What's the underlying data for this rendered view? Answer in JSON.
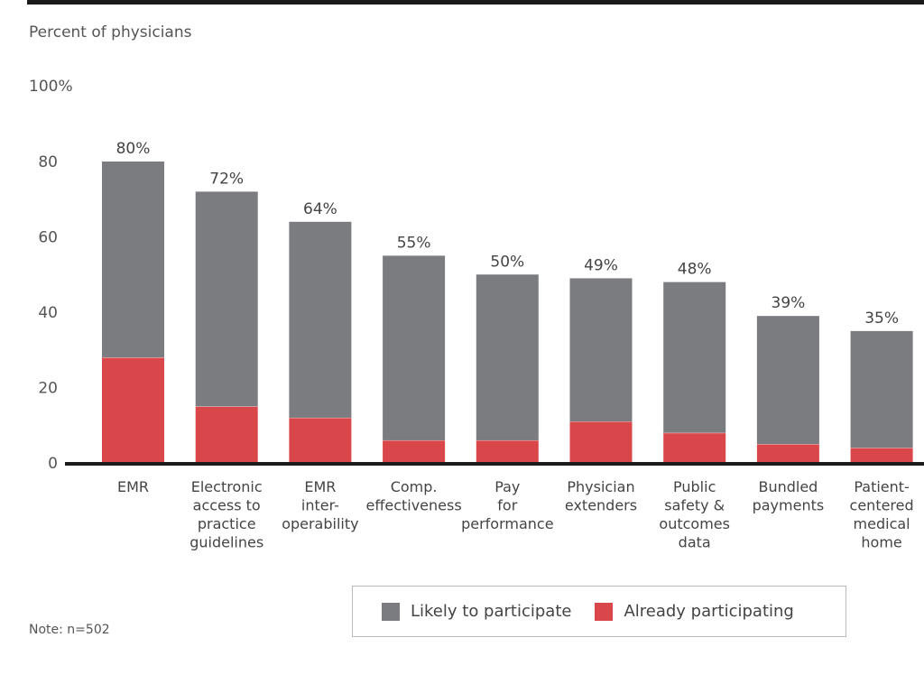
{
  "chart_data": {
    "type": "bar",
    "stacked": true,
    "title": "",
    "ylabel": "Percent of physicians",
    "ytop_label": "100%",
    "ylim": [
      0,
      100
    ],
    "yticks": [
      0,
      20,
      40,
      60,
      80
    ],
    "grid": false,
    "categories": [
      [
        "EMR"
      ],
      [
        "Electronic",
        "access to",
        "practice",
        "guidelines"
      ],
      [
        "EMR",
        "inter-",
        "operability"
      ],
      [
        "Comp.",
        "effectiveness"
      ],
      [
        "Pay",
        "for",
        "performance"
      ],
      [
        "Physician",
        "extenders"
      ],
      [
        "Public",
        "safety &",
        "outcomes",
        "data"
      ],
      [
        "Bundled",
        "payments"
      ],
      [
        "Patient-",
        "centered",
        "medical",
        "home"
      ]
    ],
    "totals": [
      80,
      72,
      64,
      55,
      50,
      49,
      48,
      39,
      35
    ],
    "total_labels": [
      "80%",
      "72%",
      "64%",
      "55%",
      "50%",
      "49%",
      "48%",
      "39%",
      "35%"
    ],
    "series": [
      {
        "name": "Already participating",
        "color": "#d9474a",
        "values": [
          28,
          15,
          12,
          6,
          6,
          11,
          8,
          5,
          4
        ]
      },
      {
        "name": "Likely to participate",
        "color": "#7b7c80",
        "values": [
          52,
          57,
          52,
          49,
          44,
          38,
          40,
          34,
          31
        ]
      }
    ],
    "legend": {
      "position": "bottom-right",
      "items": [
        {
          "label": "Likely to participate",
          "color": "#7b7c80"
        },
        {
          "label": "Already participating",
          "color": "#d9474a"
        }
      ]
    },
    "note": "Note: n=502"
  }
}
